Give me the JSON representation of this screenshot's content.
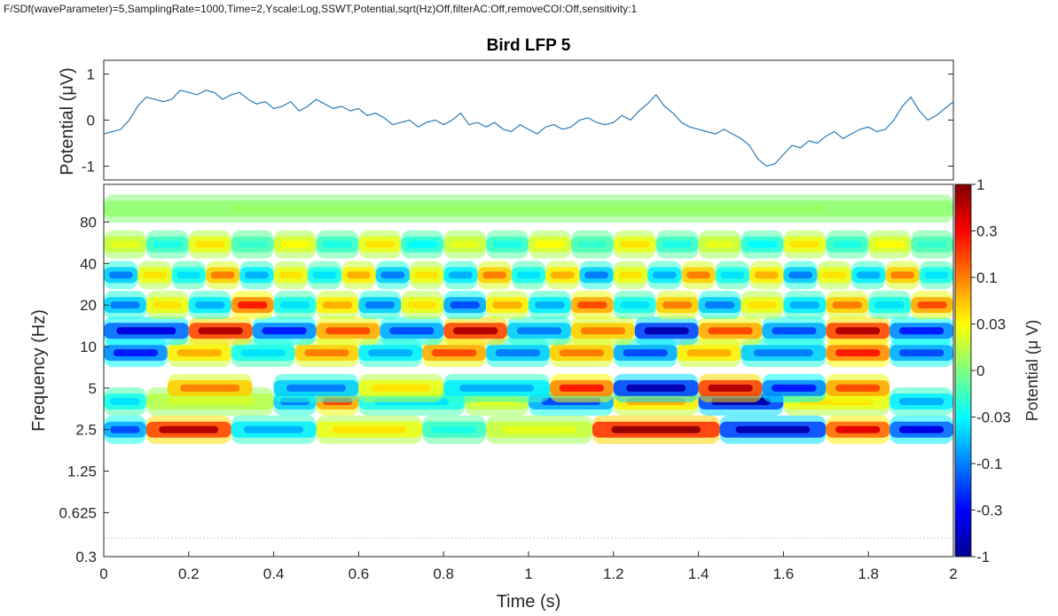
{
  "header": {
    "text": "F/SDf(waveParameter)=5,SamplingRate=1000,Time=2,Yscale:Log,SSWT,Potential,sqrt(Hz)Off,filterAC:Off,removeCOI:Off,sensitivity:1"
  },
  "colors": {
    "trace": "#2a7ab8",
    "axis": "#262626",
    "colormap": "jet"
  },
  "chart_data": [
    {
      "type": "line",
      "title": "Bird LFP 5",
      "xlabel": "",
      "ylabel": "Potential (μV)",
      "xlim": [
        0,
        2
      ],
      "ylim": [
        -1.3,
        1.3
      ],
      "yticks": [
        1,
        0,
        -1
      ],
      "ytick_labels": [
        "1",
        "0",
        "-1"
      ],
      "grid": false,
      "series": [
        {
          "x": [
            0,
            0.02,
            0.04,
            0.06,
            0.08,
            0.1,
            0.12,
            0.14,
            0.16,
            0.18,
            0.2,
            0.22,
            0.24,
            0.26,
            0.28,
            0.3,
            0.32,
            0.34,
            0.36,
            0.38,
            0.4,
            0.42,
            0.44,
            0.46,
            0.48,
            0.5,
            0.52,
            0.54,
            0.56,
            0.58,
            0.6,
            0.62,
            0.64,
            0.66,
            0.68,
            0.7,
            0.72,
            0.74,
            0.76,
            0.78,
            0.8,
            0.82,
            0.84,
            0.86,
            0.88,
            0.9,
            0.92,
            0.94,
            0.96,
            0.98,
            1.0,
            1.02,
            1.04,
            1.06,
            1.08,
            1.1,
            1.12,
            1.14,
            1.16,
            1.18,
            1.2,
            1.22,
            1.24,
            1.26,
            1.28,
            1.3,
            1.32,
            1.34,
            1.36,
            1.38,
            1.4,
            1.42,
            1.44,
            1.46,
            1.48,
            1.5,
            1.52,
            1.54,
            1.56,
            1.58,
            1.6,
            1.62,
            1.64,
            1.66,
            1.68,
            1.7,
            1.72,
            1.74,
            1.76,
            1.78,
            1.8,
            1.82,
            1.84,
            1.86,
            1.88,
            1.9,
            1.92,
            1.94,
            1.96,
            1.98,
            2.0
          ],
          "values": [
            -0.3,
            -0.25,
            -0.2,
            0.0,
            0.3,
            0.5,
            0.45,
            0.4,
            0.45,
            0.65,
            0.6,
            0.55,
            0.65,
            0.6,
            0.45,
            0.55,
            0.6,
            0.45,
            0.35,
            0.4,
            0.25,
            0.3,
            0.4,
            0.2,
            0.3,
            0.45,
            0.35,
            0.25,
            0.3,
            0.2,
            0.25,
            0.1,
            0.15,
            0.05,
            -0.1,
            -0.05,
            0.0,
            -0.15,
            -0.05,
            0.0,
            -0.1,
            0.0,
            0.15,
            -0.1,
            -0.05,
            -0.15,
            -0.05,
            -0.2,
            -0.25,
            -0.1,
            -0.2,
            -0.3,
            -0.15,
            -0.1,
            -0.2,
            -0.15,
            0.0,
            0.05,
            -0.05,
            -0.1,
            -0.05,
            0.1,
            0.0,
            0.2,
            0.35,
            0.55,
            0.3,
            0.15,
            -0.05,
            -0.15,
            -0.2,
            -0.25,
            -0.3,
            -0.2,
            -0.3,
            -0.4,
            -0.55,
            -0.85,
            -1.0,
            -0.95,
            -0.75,
            -0.55,
            -0.6,
            -0.45,
            -0.5,
            -0.35,
            -0.25,
            -0.4,
            -0.3,
            -0.2,
            -0.15,
            -0.25,
            -0.2,
            0.0,
            0.3,
            0.5,
            0.2,
            0.0,
            0.1,
            0.25,
            0.4
          ]
        }
      ]
    },
    {
      "type": "heatmap",
      "xlabel": "Time (s)",
      "ylabel": "Frequency (Hz)",
      "xlim": [
        0,
        2
      ],
      "xticks": [
        0,
        0.2,
        0.4,
        0.6,
        0.8,
        1,
        1.2,
        1.4,
        1.6,
        1.8,
        2
      ],
      "xtick_labels": [
        "0",
        "0.2",
        "0.4",
        "0.6",
        "0.8",
        "1",
        "1.2",
        "1.4",
        "1.6",
        "1.8",
        "2"
      ],
      "yscale": "log",
      "ylim": [
        0.3,
        150
      ],
      "yticks": [
        0.3,
        0.625,
        1.25,
        2.5,
        5,
        10,
        20,
        40,
        80
      ],
      "ytick_labels": [
        "0.3",
        "0.625",
        "1.25",
        "2.5",
        "5",
        "10",
        "20",
        "40",
        "80"
      ],
      "colorbar": {
        "label": "Potential (μ V)",
        "ticks": [
          1,
          0.3,
          0.1,
          0.03,
          0,
          -0.03,
          -0.1,
          -0.3,
          -1
        ],
        "tick_labels": [
          "1",
          "0.3",
          "0.1",
          "0.03",
          "0",
          "-0.03",
          "-0.1",
          "-0.3",
          "-1"
        ]
      },
      "bands": [
        {
          "freq": 2.5,
          "segments": [
            [
              0.0,
              0.1,
              -0.6
            ],
            [
              0.1,
              0.3,
              0.9
            ],
            [
              0.3,
              0.5,
              -0.4
            ],
            [
              0.5,
              0.75,
              0.3
            ],
            [
              0.75,
              0.9,
              -0.2
            ],
            [
              0.9,
              1.15,
              0.2
            ],
            [
              1.15,
              1.45,
              0.95
            ],
            [
              1.45,
              1.7,
              -0.9
            ],
            [
              1.7,
              1.85,
              0.8
            ],
            [
              1.85,
              2.0,
              -0.8
            ]
          ]
        },
        {
          "freq": 4,
          "segments": [
            [
              0.0,
              0.1,
              -0.3
            ],
            [
              0.1,
              0.4,
              0.15
            ],
            [
              0.4,
              0.5,
              -0.5
            ],
            [
              0.5,
              0.6,
              0.6
            ],
            [
              0.6,
              0.85,
              -0.3
            ],
            [
              0.85,
              1.0,
              0.2
            ],
            [
              1.0,
              1.2,
              -0.6
            ],
            [
              1.2,
              1.4,
              0.4
            ],
            [
              1.4,
              1.6,
              -0.9
            ],
            [
              1.6,
              1.85,
              0.3
            ],
            [
              1.85,
              2.0,
              -0.4
            ]
          ]
        },
        {
          "freq": 5,
          "segments": [
            [
              0.15,
              0.35,
              0.5
            ],
            [
              0.4,
              0.6,
              -0.5
            ],
            [
              0.6,
              0.8,
              0.3
            ],
            [
              0.8,
              1.05,
              -0.4
            ],
            [
              1.05,
              1.2,
              0.7
            ],
            [
              1.2,
              1.4,
              -0.9
            ],
            [
              1.4,
              1.55,
              0.9
            ],
            [
              1.55,
              1.7,
              -0.7
            ],
            [
              1.7,
              1.85,
              0.6
            ]
          ]
        },
        {
          "freq": 9,
          "segments": [
            [
              0.0,
              0.15,
              -0.7
            ],
            [
              0.15,
              0.3,
              0.4
            ],
            [
              0.3,
              0.45,
              -0.3
            ],
            [
              0.45,
              0.6,
              0.5
            ],
            [
              0.6,
              0.75,
              -0.4
            ],
            [
              0.75,
              0.9,
              0.6
            ],
            [
              0.9,
              1.05,
              -0.5
            ],
            [
              1.05,
              1.2,
              0.5
            ],
            [
              1.2,
              1.35,
              -0.6
            ],
            [
              1.35,
              1.5,
              0.4
            ],
            [
              1.5,
              1.7,
              -0.5
            ],
            [
              1.7,
              1.85,
              0.7
            ],
            [
              1.85,
              2.0,
              -0.6
            ]
          ]
        },
        {
          "freq": 13,
          "segments": [
            [
              0.0,
              0.2,
              -0.8
            ],
            [
              0.2,
              0.35,
              0.9
            ],
            [
              0.35,
              0.5,
              -0.7
            ],
            [
              0.5,
              0.65,
              0.6
            ],
            [
              0.65,
              0.8,
              -0.6
            ],
            [
              0.8,
              0.95,
              0.9
            ],
            [
              0.95,
              1.1,
              -0.5
            ],
            [
              1.1,
              1.25,
              0.5
            ],
            [
              1.25,
              1.4,
              -0.9
            ],
            [
              1.4,
              1.55,
              0.6
            ],
            [
              1.55,
              1.7,
              -0.6
            ],
            [
              1.7,
              1.85,
              0.9
            ],
            [
              1.85,
              2.0,
              -0.7
            ]
          ]
        },
        {
          "freq": 20,
          "segments": [
            [
              0.0,
              0.1,
              -0.5
            ],
            [
              0.1,
              0.2,
              0.3
            ],
            [
              0.2,
              0.3,
              -0.4
            ],
            [
              0.3,
              0.4,
              0.7
            ],
            [
              0.4,
              0.5,
              -0.3
            ],
            [
              0.5,
              0.6,
              0.4
            ],
            [
              0.6,
              0.7,
              -0.5
            ],
            [
              0.7,
              0.8,
              0.3
            ],
            [
              0.8,
              0.9,
              -0.6
            ],
            [
              0.9,
              1.0,
              0.4
            ],
            [
              1.0,
              1.1,
              -0.4
            ],
            [
              1.1,
              1.2,
              0.6
            ],
            [
              1.2,
              1.3,
              -0.3
            ],
            [
              1.3,
              1.4,
              0.5
            ],
            [
              1.4,
              1.5,
              -0.5
            ],
            [
              1.5,
              1.6,
              0.3
            ],
            [
              1.6,
              1.7,
              -0.4
            ],
            [
              1.7,
              1.8,
              0.5
            ],
            [
              1.8,
              1.9,
              -0.3
            ],
            [
              1.9,
              2.0,
              0.6
            ]
          ]
        },
        {
          "freq": 33,
          "segments": [
            [
              0.0,
              0.08,
              -0.5
            ],
            [
              0.08,
              0.16,
              0.3
            ],
            [
              0.16,
              0.24,
              -0.3
            ],
            [
              0.24,
              0.32,
              0.5
            ],
            [
              0.32,
              0.4,
              -0.4
            ],
            [
              0.4,
              0.48,
              0.3
            ],
            [
              0.48,
              0.56,
              -0.3
            ],
            [
              0.56,
              0.64,
              0.4
            ],
            [
              0.64,
              0.72,
              -0.5
            ],
            [
              0.72,
              0.8,
              0.3
            ],
            [
              0.8,
              0.88,
              -0.4
            ],
            [
              0.88,
              0.96,
              0.5
            ],
            [
              0.96,
              1.04,
              -0.3
            ],
            [
              1.04,
              1.12,
              0.4
            ],
            [
              1.12,
              1.2,
              -0.5
            ],
            [
              1.2,
              1.28,
              0.3
            ],
            [
              1.28,
              1.36,
              -0.4
            ],
            [
              1.36,
              1.44,
              0.5
            ],
            [
              1.44,
              1.52,
              -0.3
            ],
            [
              1.52,
              1.6,
              0.4
            ],
            [
              1.6,
              1.68,
              -0.5
            ],
            [
              1.68,
              1.76,
              0.3
            ],
            [
              1.76,
              1.84,
              -0.4
            ],
            [
              1.84,
              1.92,
              0.5
            ],
            [
              1.92,
              2.0,
              -0.3
            ]
          ]
        },
        {
          "freq": 55,
          "segments": [
            [
              0.0,
              0.1,
              0.2
            ],
            [
              0.1,
              0.2,
              -0.2
            ],
            [
              0.2,
              0.3,
              0.3
            ],
            [
              0.3,
              0.4,
              -0.15
            ],
            [
              0.4,
              0.5,
              0.25
            ],
            [
              0.5,
              0.6,
              -0.2
            ],
            [
              0.6,
              0.7,
              0.3
            ],
            [
              0.7,
              0.8,
              -0.25
            ],
            [
              0.8,
              0.9,
              0.2
            ],
            [
              0.9,
              1.0,
              -0.2
            ],
            [
              1.0,
              1.1,
              0.25
            ],
            [
              1.1,
              1.2,
              -0.15
            ],
            [
              1.2,
              1.3,
              0.3
            ],
            [
              1.3,
              1.4,
              -0.2
            ],
            [
              1.4,
              1.5,
              0.2
            ],
            [
              1.5,
              1.6,
              -0.25
            ],
            [
              1.6,
              1.7,
              0.3
            ],
            [
              1.7,
              1.8,
              -0.2
            ],
            [
              1.8,
              1.9,
              0.25
            ],
            [
              1.9,
              2.0,
              -0.15
            ]
          ]
        },
        {
          "freq": 100,
          "segments": [
            [
              0.0,
              2.0,
              0.05
            ]
          ]
        }
      ]
    }
  ]
}
